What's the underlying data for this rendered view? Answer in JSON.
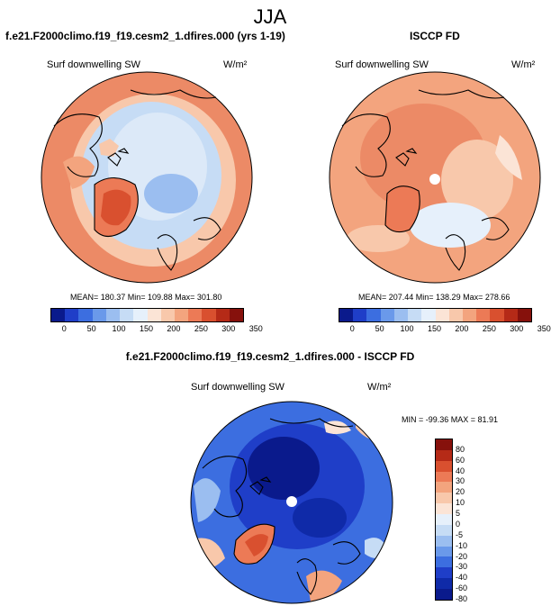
{
  "page_title": "JJA",
  "panels": [
    {
      "title": "f.e21.F2000climo.f19_f19.cesm2_1.dfires.000 (yrs 1-19)",
      "variable": "Surf downwelling SW",
      "units": "W/m²",
      "stats": "MEAN= 180.37  Min= 109.88  Max= 301.80"
    },
    {
      "title": "ISCCP FD",
      "variable": "Surf downwelling SW",
      "units": "W/m²",
      "stats": "MEAN= 207.44  Min= 138.29  Max= 278.66"
    },
    {
      "title": "f.e21.F2000climo.f19_f19.cesm2_1.dfires.000 - ISCCP FD",
      "variable": "Surf downwelling SW",
      "units": "W/m²",
      "stats": "MIN = -99.36 MAX =  81.91"
    }
  ],
  "chart_data": [
    {
      "type": "heatmap",
      "title": "f.e21.F2000climo.f19_f19.cesm2_1.dfires.000 (yrs 1-19)",
      "variable": "Surf downwelling SW",
      "units": "W/m²",
      "projection": "north polar stereographic",
      "mean": 180.37,
      "min": 109.88,
      "max": 301.8,
      "colorbar_ticks": [
        "0",
        "50",
        "100",
        "150",
        "200",
        "250",
        "300",
        "350"
      ]
    },
    {
      "type": "heatmap",
      "title": "ISCCP FD",
      "variable": "Surf downwelling SW",
      "units": "W/m²",
      "projection": "north polar stereographic",
      "mean": 207.44,
      "min": 138.29,
      "max": 278.66,
      "colorbar_ticks": [
        "0",
        "50",
        "100",
        "150",
        "200",
        "250",
        "300",
        "350"
      ]
    },
    {
      "type": "heatmap",
      "title": "f.e21.F2000climo.f19_f19.cesm2_1.dfires.000 - ISCCP FD",
      "variable": "Surf downwelling SW",
      "units": "W/m²",
      "projection": "north polar stereographic",
      "min": -99.36,
      "max": 81.91,
      "colorbar_ticks": [
        "80",
        "60",
        "40",
        "30",
        "20",
        "10",
        "5",
        "0",
        "-5",
        "-10",
        "-20",
        "-30",
        "-40",
        "-60",
        "-80"
      ]
    }
  ],
  "colors": {
    "seq_scale": [
      "#0a1a8c",
      "#1f3ec8",
      "#3c6ee0",
      "#6a99ea",
      "#9bbef0",
      "#c6dcf5",
      "#e6f0fb",
      "#fbe4d6",
      "#f8c8ab",
      "#f3a47e",
      "#ec7a56",
      "#d9502f",
      "#b52a17",
      "#86110c"
    ],
    "div_scale": [
      "#86110c",
      "#b52a17",
      "#d9502f",
      "#ec7a56",
      "#f3a47e",
      "#f8c8ab",
      "#fbe4d6",
      "#e6f0fb",
      "#c6dcf5",
      "#9bbef0",
      "#6a99ea",
      "#3c6ee0",
      "#1f3ec8",
      "#0f2aa8",
      "#0a1a8c"
    ]
  }
}
